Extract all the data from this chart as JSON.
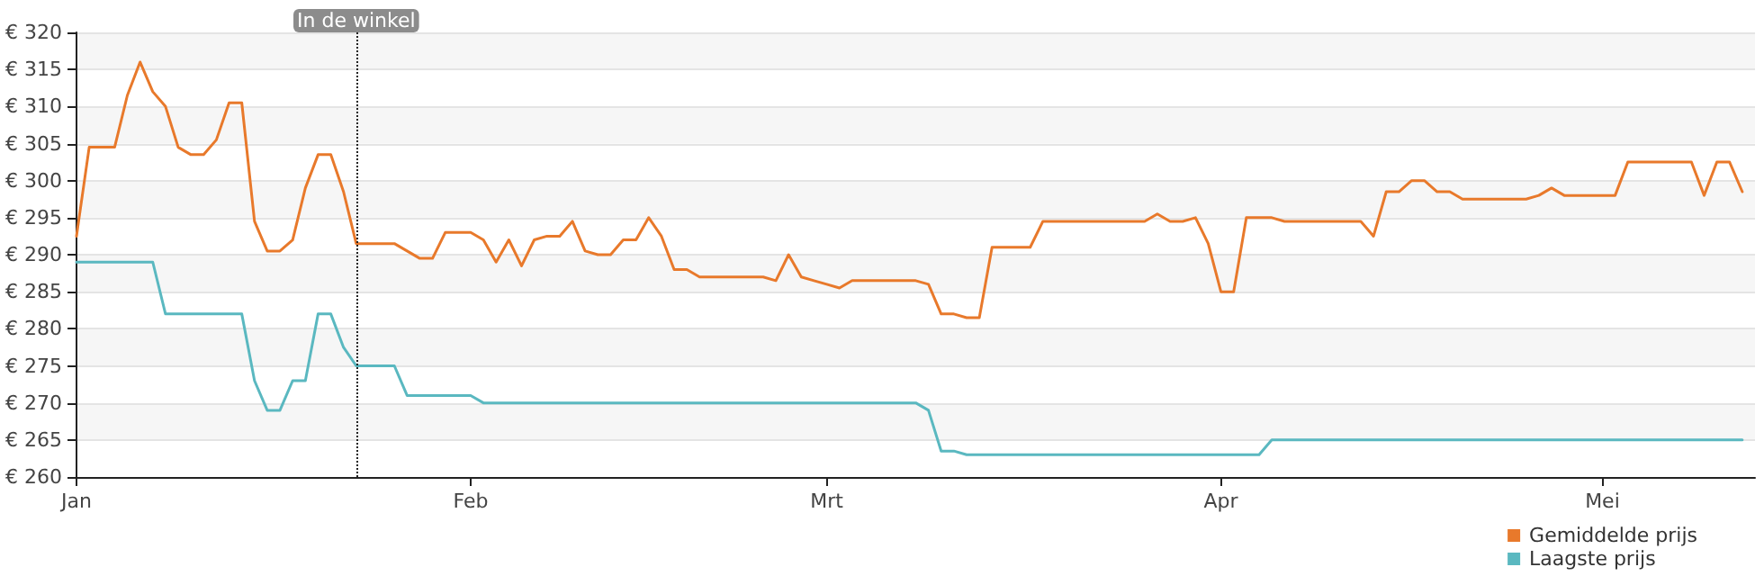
{
  "chart_data": {
    "type": "line",
    "xlim": [
      "--01-01",
      "--05-13"
    ],
    "xticks": [
      {
        "value": "--01-01",
        "label": "Jan"
      },
      {
        "value": "--02-01",
        "label": "Feb"
      },
      {
        "value": "--03-01",
        "label": "Mrt"
      },
      {
        "value": "--04-01",
        "label": "Apr"
      },
      {
        "value": "--05-01",
        "label": "Mei"
      }
    ],
    "ylim": [
      260,
      320
    ],
    "yticks": [
      {
        "value": 260,
        "label": "€ 260"
      },
      {
        "value": 265,
        "label": "€ 265"
      },
      {
        "value": 270,
        "label": "€ 270"
      },
      {
        "value": 275,
        "label": "€ 275"
      },
      {
        "value": 280,
        "label": "€ 280"
      },
      {
        "value": 285,
        "label": "€ 285"
      },
      {
        "value": 290,
        "label": "€ 290"
      },
      {
        "value": 295,
        "label": "€ 295"
      },
      {
        "value": 300,
        "label": "€ 300"
      },
      {
        "value": 305,
        "label": "€ 305"
      },
      {
        "value": 310,
        "label": "€ 310"
      },
      {
        "value": 315,
        "label": "€ 315"
      },
      {
        "value": 320,
        "label": "€ 320"
      }
    ],
    "grid": "y",
    "legend": "bottom right",
    "marker": "none",
    "line_style": "solid",
    "ref_lines": [
      {
        "axis": "x",
        "value": "--01-23",
        "label": "In de winkel",
        "line_style": "dotted",
        "color": "#222222"
      }
    ],
    "series": [
      {
        "name": "Gemiddelde prijs",
        "color": "#e8792b",
        "x": [
          "--01-01",
          "--01-02",
          "--01-03",
          "--01-04",
          "--01-05",
          "--01-06",
          "--01-07",
          "--01-08",
          "--01-09",
          "--01-10",
          "--01-11",
          "--01-12",
          "--01-13",
          "--01-14",
          "--01-15",
          "--01-16",
          "--01-17",
          "--01-18",
          "--01-19",
          "--01-20",
          "--01-21",
          "--01-22",
          "--01-23",
          "--01-26",
          "--01-27",
          "--01-28",
          "--01-29",
          "--01-30",
          "--02-01",
          "--02-02",
          "--02-03",
          "--02-04",
          "--02-05",
          "--02-06",
          "--02-07",
          "--02-08",
          "--02-09",
          "--02-10",
          "--02-11",
          "--02-12",
          "--02-13",
          "--02-14",
          "--02-15",
          "--02-16",
          "--02-17",
          "--02-18",
          "--02-19",
          "--02-24",
          "--02-25",
          "--02-26",
          "--02-27",
          "--02-28",
          "--03-01",
          "--03-02",
          "--03-03",
          "--03-08",
          "--03-09",
          "--03-10",
          "--03-11",
          "--03-12",
          "--03-13",
          "--03-14",
          "--03-17",
          "--03-18",
          "--03-26",
          "--03-27",
          "--03-28",
          "--03-29",
          "--03-30",
          "--03-31",
          "--04-01",
          "--04-02",
          "--04-03",
          "--04-04",
          "--04-05",
          "--04-06",
          "--04-12",
          "--04-13",
          "--04-14",
          "--04-15",
          "--04-16",
          "--04-17",
          "--04-18",
          "--04-19",
          "--04-20",
          "--04-21",
          "--04-25",
          "--04-26",
          "--04-27",
          "--04-28",
          "--05-02",
          "--05-03",
          "--05-08",
          "--05-09",
          "--05-10",
          "--05-11",
          "--05-12"
        ],
        "values": [
          292.5,
          304.5,
          304.5,
          304.5,
          311.5,
          316,
          312,
          310,
          304.5,
          303.5,
          303.5,
          305.5,
          310.5,
          310.5,
          294.5,
          290.5,
          290.5,
          292,
          299,
          303.5,
          303.5,
          298.5,
          291.5,
          291.5,
          290.5,
          289.5,
          289.5,
          293,
          293,
          292,
          289,
          292,
          288.5,
          292,
          292.5,
          292.5,
          294.5,
          290.5,
          290,
          290,
          292,
          292,
          295,
          292.5,
          288,
          288,
          287,
          287,
          286.5,
          290,
          287,
          286.5,
          286,
          285.5,
          286.5,
          286.5,
          286,
          282,
          282,
          281.5,
          281.5,
          291,
          291,
          294.5,
          294.5,
          295.5,
          294.5,
          294.5,
          295,
          291.5,
          285,
          285,
          295,
          295,
          295,
          294.5,
          294.5,
          292.5,
          298.5,
          298.5,
          300,
          300,
          298.5,
          298.5,
          297.5,
          297.5,
          297.5,
          298,
          299,
          298,
          298,
          302.5,
          302.5,
          298,
          302.5,
          302.5,
          298.5
        ]
      },
      {
        "name": "Laagste prijs",
        "color": "#5ab8c0",
        "x": [
          "--01-01",
          "--01-07",
          "--01-08",
          "--01-14",
          "--01-15",
          "--01-16",
          "--01-17",
          "--01-18",
          "--01-19",
          "--01-20",
          "--01-21",
          "--01-22",
          "--01-23",
          "--01-26",
          "--01-27",
          "--02-01",
          "--02-02",
          "--03-08",
          "--03-09",
          "--03-10",
          "--03-11",
          "--03-12",
          "--04-04",
          "--04-05",
          "--05-12"
        ],
        "values": [
          289,
          289,
          282,
          282,
          273,
          269,
          269,
          273,
          273,
          282,
          282,
          277.5,
          275,
          275,
          271,
          271,
          270,
          270,
          269,
          263.5,
          263.5,
          263,
          263,
          265,
          265
        ]
      }
    ]
  }
}
